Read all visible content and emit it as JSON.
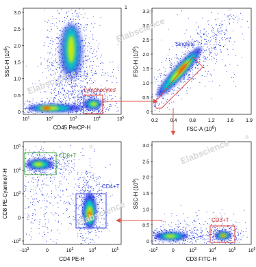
{
  "colors": {
    "density_low": "#1a2fe0",
    "density_mid": "#00d8c0",
    "density_high_1": "#d8ee00",
    "density_high_2": "#ff3a00",
    "gate_red": "#e23b3b",
    "gate_blue": "#3a46e6",
    "gate_green": "#3aa83a",
    "arrow": "#e0554a",
    "watermark": "#d8d8d8"
  },
  "watermark_text": "Elabscience",
  "watermark_mark": "®",
  "top_corner_mark": "1",
  "chart_data": [
    {
      "type": "scatter",
      "subtype": "flow-cytometry-density-dot-plot",
      "x_axis": {
        "label": "CD45 PerCP-H",
        "scale": "log",
        "ticks": [
          {
            "label": "10",
            "sup": "1"
          },
          {
            "label": "10",
            "sup": "2"
          },
          {
            "label": "10",
            "sup": "3"
          },
          {
            "label": "10",
            "sup": "4"
          },
          {
            "label": "10",
            "sup": "5"
          }
        ]
      },
      "y_axis": {
        "label": "SSC-H",
        "unit": "(10",
        "unit_sup": "6",
        "unit_close": ")",
        "scale": "linear",
        "ticks": [
          "0",
          "0.5",
          "1.0",
          "1.5",
          "2.0",
          "2.5",
          "3.0"
        ]
      },
      "gates": [
        {
          "label": "Lymphocytes",
          "color": "#e23b3b"
        }
      ],
      "populations": [
        {
          "name": "granulocytes",
          "x_decade": 3.0,
          "y": 1.15
        },
        {
          "name": "debris",
          "x_decade": 1.6,
          "y": 0.05
        },
        {
          "name": "lymphocytes",
          "x_decade": 3.8,
          "y": 0.1
        }
      ]
    },
    {
      "type": "scatter",
      "subtype": "flow-cytometry-density-dot-plot",
      "x_axis": {
        "label": "FSC-A",
        "unit": "(10",
        "unit_sup": "6",
        "unit_close": ")",
        "scale": "linear",
        "ticks": [
          "0.2",
          "0.4",
          "0.8",
          "1.2",
          "1.6",
          "1.9"
        ]
      },
      "y_axis": {
        "label": "FSC-H",
        "unit": "(10",
        "unit_sup": "6",
        "unit_close": ")",
        "scale": "linear",
        "ticks": [
          "0",
          "0.5",
          "1.0",
          "1.5",
          "2.0",
          "2.5",
          "3.0",
          "3.3"
        ]
      },
      "gates": [
        {
          "label": "Singlets",
          "color": "#3a46e6"
        }
      ]
    },
    {
      "type": "scatter",
      "subtype": "flow-cytometry-density-dot-plot",
      "x_axis": {
        "label": "CD3 FITC-H",
        "scale": "biexponential",
        "ticks": [
          {
            "label": "-10",
            "sup": "2"
          },
          {
            "label": "0",
            "sup": ""
          },
          {
            "label": "10",
            "sup": "3"
          },
          {
            "label": "10",
            "sup": "4"
          },
          {
            "label": "10",
            "sup": "5"
          },
          {
            "label": "10",
            "sup": "6"
          }
        ]
      },
      "y_axis": {
        "label": "SSC-H",
        "unit": "(10",
        "unit_sup": "6",
        "unit_close": ")",
        "scale": "linear",
        "ticks": [
          "0",
          "0.5",
          "1.0",
          "1.5",
          "2.0",
          "2.5",
          "3.0"
        ]
      },
      "gates": [
        {
          "label": "CD3+T",
          "color": "#e23b3b"
        }
      ]
    },
    {
      "type": "scatter",
      "subtype": "flow-cytometry-density-dot-plot",
      "x_axis": {
        "label": "CD4 PE-H",
        "scale": "biexponential",
        "ticks": [
          {
            "label": "-10",
            "sup": "3"
          },
          {
            "label": "0",
            "sup": ""
          },
          {
            "label": "10",
            "sup": "3"
          },
          {
            "label": "10",
            "sup": "4"
          },
          {
            "label": "10",
            "sup": "5"
          }
        ]
      },
      "y_axis": {
        "label": "CD8 PE-Cyanine7-H",
        "scale": "biexponential",
        "ticks": [
          {
            "label": "-10",
            "sup": "3"
          },
          {
            "label": "0",
            "sup": ""
          },
          {
            "label": "10",
            "sup": "3"
          },
          {
            "label": "10",
            "sup": "4"
          },
          {
            "label": "10",
            "sup": "5"
          }
        ]
      },
      "gates": [
        {
          "label": "CD8+T",
          "color": "#3aa83a"
        },
        {
          "label": "CD4+T",
          "color": "#3a46e6"
        }
      ]
    }
  ]
}
